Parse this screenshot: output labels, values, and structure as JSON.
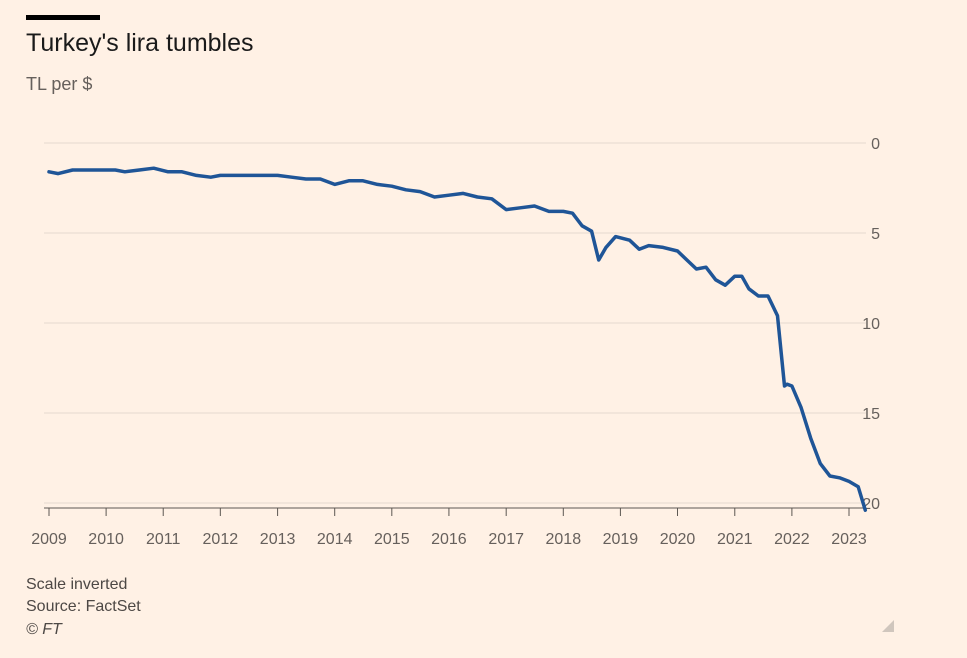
{
  "header": {
    "title": "Turkey's lira tumbles",
    "subtitle": "TL per $"
  },
  "footer": {
    "note": "Scale inverted",
    "source": "Source: FactSet",
    "copyright": "© FT"
  },
  "colors": {
    "background": "#FFF1E5",
    "line": "#1F5597",
    "grid": "#E6D9CE",
    "axis": "#66605C"
  },
  "chart_data": {
    "type": "line",
    "title": "Turkey's lira tumbles",
    "ylabel": "TL per $",
    "y_inverted": true,
    "ylim": [
      0,
      20
    ],
    "yticks": [
      "0",
      "5",
      "10",
      "15",
      "20"
    ],
    "xticks": [
      "2009",
      "2010",
      "2011",
      "2012",
      "2013",
      "2014",
      "2015",
      "2016",
      "2017",
      "2018",
      "2019",
      "2020",
      "2021",
      "2022",
      "2023"
    ],
    "grid": true,
    "series": [
      {
        "x": [
          "2009-01-01",
          "2009-03-01",
          "2009-06-01",
          "2009-09-01",
          "2009-12-01",
          "2010-03-01",
          "2010-05-01",
          "2010-08-01",
          "2010-11-01",
          "2011-02-01",
          "2011-05-01",
          "2011-08-01",
          "2011-11-01",
          "2012-01-01",
          "2012-04-01",
          "2012-07-01",
          "2012-10-01",
          "2013-01-01",
          "2013-04-01",
          "2013-07-01",
          "2013-10-01",
          "2014-01-01",
          "2014-04-01",
          "2014-07-01",
          "2014-10-01",
          "2015-01-01",
          "2015-04-01",
          "2015-07-01",
          "2015-10-01",
          "2016-01-01",
          "2016-04-01",
          "2016-07-01",
          "2016-10-01",
          "2017-01-01",
          "2017-04-01",
          "2017-07-01",
          "2017-10-01",
          "2018-01-01",
          "2018-03-01",
          "2018-05-01",
          "2018-07-01",
          "2018-08-15",
          "2018-10-01",
          "2018-12-01",
          "2019-03-01",
          "2019-05-01",
          "2019-07-01",
          "2019-10-01",
          "2020-01-01",
          "2020-03-01",
          "2020-05-01",
          "2020-07-01",
          "2020-09-01",
          "2020-11-01",
          "2021-01-01",
          "2021-02-15",
          "2021-04-01",
          "2021-06-01",
          "2021-08-01",
          "2021-10-01",
          "2021-11-15",
          "2021-12-01",
          "2022-01-01",
          "2022-03-01",
          "2022-05-01",
          "2022-07-01",
          "2022-09-01",
          "2022-11-01",
          "2023-01-01",
          "2023-03-01",
          "2023-04-15"
        ],
        "values": [
          1.6,
          1.7,
          1.5,
          1.5,
          1.5,
          1.5,
          1.6,
          1.5,
          1.4,
          1.6,
          1.6,
          1.8,
          1.9,
          1.8,
          1.8,
          1.8,
          1.8,
          1.8,
          1.9,
          2.0,
          2.0,
          2.3,
          2.1,
          2.1,
          2.3,
          2.4,
          2.6,
          2.7,
          3.0,
          2.9,
          2.8,
          3.0,
          3.1,
          3.7,
          3.6,
          3.5,
          3.8,
          3.8,
          3.9,
          4.6,
          4.9,
          6.5,
          5.8,
          5.2,
          5.4,
          5.9,
          5.7,
          5.8,
          6.0,
          6.5,
          7.0,
          6.9,
          7.6,
          7.9,
          7.4,
          7.4,
          8.1,
          8.5,
          8.5,
          9.6,
          13.5,
          13.4,
          13.5,
          14.7,
          16.4,
          17.8,
          18.5,
          18.6,
          18.8,
          19.1,
          20.4
        ]
      }
    ]
  }
}
